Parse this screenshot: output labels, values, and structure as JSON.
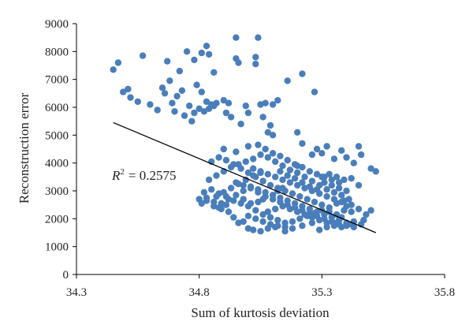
{
  "chart_data": {
    "type": "scatter",
    "title": "",
    "xlabel": "Sum of kurtosis deviation",
    "ylabel": "Reconstruction error",
    "xlim": [
      34.3,
      35.8
    ],
    "ylim": [
      0,
      9000
    ],
    "x_ticks": [
      "34.3",
      "34.8",
      "35.3",
      "35.8"
    ],
    "y_ticks": [
      "0",
      "1000",
      "2000",
      "3000",
      "4000",
      "5000",
      "6000",
      "7000",
      "8000",
      "9000"
    ],
    "grid": false,
    "legend": "none",
    "point_color": "#4a7ebb",
    "trendline": {
      "color": "#000000",
      "x": [
        34.45,
        35.52
      ],
      "y": [
        5450,
        1500
      ],
      "annotation": {
        "prefix": "R",
        "superscript": "2",
        "equals": "= 0.2575"
      }
    },
    "points": [
      [
        34.45,
        7350
      ],
      [
        34.47,
        7600
      ],
      [
        34.49,
        6550
      ],
      [
        34.51,
        6650
      ],
      [
        34.52,
        6350
      ],
      [
        34.55,
        6200
      ],
      [
        34.57,
        7850
      ],
      [
        34.6,
        6100
      ],
      [
        34.63,
        5900
      ],
      [
        34.65,
        6700
      ],
      [
        34.66,
        6500
      ],
      [
        34.67,
        7650
      ],
      [
        34.68,
        6950
      ],
      [
        34.69,
        6150
      ],
      [
        34.7,
        5850
      ],
      [
        34.71,
        6400
      ],
      [
        34.72,
        7300
      ],
      [
        34.73,
        6600
      ],
      [
        34.74,
        5700
      ],
      [
        34.75,
        8000
      ],
      [
        34.76,
        6050
      ],
      [
        34.77,
        5500
      ],
      [
        34.78,
        7700
      ],
      [
        34.78,
        5800
      ],
      [
        34.79,
        6800
      ],
      [
        34.8,
        5950
      ],
      [
        34.81,
        6550
      ],
      [
        34.81,
        7950
      ],
      [
        34.82,
        5850
      ],
      [
        34.83,
        6200
      ],
      [
        34.83,
        8200
      ],
      [
        34.84,
        5950
      ],
      [
        34.84,
        7900
      ],
      [
        34.85,
        6100
      ],
      [
        34.86,
        7250
      ],
      [
        34.86,
        6050
      ],
      [
        34.87,
        6150
      ],
      [
        34.9,
        6250
      ],
      [
        34.91,
        5800
      ],
      [
        34.92,
        6150
      ],
      [
        34.93,
        5650
      ],
      [
        34.95,
        8500
      ],
      [
        34.95,
        7750
      ],
      [
        34.96,
        7600
      ],
      [
        34.97,
        5400
      ],
      [
        34.99,
        6050
      ],
      [
        35.0,
        5800
      ],
      [
        35.03,
        7800
      ],
      [
        35.03,
        7550
      ],
      [
        35.04,
        8500
      ],
      [
        35.05,
        6100
      ],
      [
        35.06,
        5650
      ],
      [
        35.07,
        6150
      ],
      [
        35.08,
        5100
      ],
      [
        35.09,
        5350
      ],
      [
        35.1,
        6100
      ],
      [
        35.12,
        6250
      ],
      [
        35.16,
        6950
      ],
      [
        35.22,
        7200
      ],
      [
        35.27,
        6550
      ],
      [
        35.1,
        5000
      ],
      [
        35.2,
        5100
      ],
      [
        35.22,
        4700
      ],
      [
        35.26,
        4300
      ],
      [
        35.28,
        4500
      ],
      [
        35.3,
        4350
      ],
      [
        35.32,
        4600
      ],
      [
        35.35,
        4150
      ],
      [
        35.38,
        4450
      ],
      [
        35.4,
        4200
      ],
      [
        35.43,
        4000
      ],
      [
        35.45,
        4600
      ],
      [
        35.46,
        4300
      ],
      [
        35.5,
        3800
      ],
      [
        35.52,
        3700
      ],
      [
        35.42,
        3450
      ],
      [
        35.45,
        3200
      ],
      [
        35.4,
        2450
      ],
      [
        35.45,
        2350
      ],
      [
        35.48,
        2150
      ],
      [
        35.5,
        2300
      ],
      [
        35.47,
        1950
      ],
      [
        35.38,
        2050
      ],
      [
        35.35,
        1850
      ],
      [
        35.42,
        1800
      ],
      [
        35.32,
        1700
      ],
      [
        35.29,
        1600
      ],
      [
        35.26,
        1850
      ],
      [
        35.22,
        1750
      ],
      [
        35.18,
        1650
      ],
      [
        35.15,
        1550
      ],
      [
        35.11,
        1700
      ],
      [
        35.08,
        1650
      ],
      [
        35.05,
        1550
      ],
      [
        35.02,
        1600
      ],
      [
        35.0,
        1650
      ],
      [
        34.98,
        1900
      ],
      [
        34.96,
        1850
      ],
      [
        34.94,
        2050
      ],
      [
        34.92,
        2250
      ],
      [
        34.89,
        2350
      ],
      [
        34.86,
        2600
      ],
      [
        34.83,
        2750
      ],
      [
        34.8,
        2700
      ],
      [
        34.82,
        2950
      ],
      [
        34.85,
        3050
      ],
      [
        34.88,
        2900
      ],
      [
        34.91,
        2800
      ],
      [
        34.94,
        2650
      ],
      [
        34.97,
        2550
      ],
      [
        35.0,
        2450
      ],
      [
        35.03,
        2300
      ],
      [
        35.06,
        2150
      ],
      [
        35.09,
        2050
      ],
      [
        35.12,
        1950
      ],
      [
        35.15,
        1850
      ],
      [
        35.18,
        1900
      ],
      [
        35.21,
        2000
      ],
      [
        35.24,
        2100
      ],
      [
        35.27,
        2200
      ],
      [
        35.3,
        2300
      ],
      [
        35.33,
        2250
      ],
      [
        35.36,
        2150
      ],
      [
        35.39,
        2300
      ],
      [
        35.42,
        2250
      ],
      [
        34.84,
        3400
      ],
      [
        34.87,
        3550
      ],
      [
        34.9,
        3700
      ],
      [
        34.93,
        3850
      ],
      [
        34.96,
        3950
      ],
      [
        34.99,
        4050
      ],
      [
        35.02,
        4150
      ],
      [
        35.05,
        4300
      ],
      [
        35.08,
        4200
      ],
      [
        35.11,
        4050
      ],
      [
        35.14,
        3900
      ],
      [
        35.17,
        3750
      ],
      [
        35.2,
        3650
      ],
      [
        35.23,
        3500
      ],
      [
        35.26,
        3350
      ],
      [
        35.29,
        3200
      ],
      [
        35.32,
        3050
      ],
      [
        35.35,
        2950
      ],
      [
        35.38,
        2850
      ],
      [
        35.41,
        2700
      ],
      [
        34.85,
        4050
      ],
      [
        34.88,
        4200
      ],
      [
        34.91,
        4100
      ],
      [
        34.94,
        3950
      ],
      [
        34.97,
        3800
      ],
      [
        35.0,
        3650
      ],
      [
        35.03,
        3500
      ],
      [
        35.06,
        3350
      ],
      [
        35.09,
        3200
      ],
      [
        35.12,
        3100
      ],
      [
        35.15,
        3000
      ],
      [
        35.18,
        2900
      ],
      [
        35.21,
        2800
      ],
      [
        35.24,
        2700
      ],
      [
        35.27,
        2600
      ],
      [
        35.3,
        2500
      ],
      [
        35.33,
        2400
      ],
      [
        35.36,
        2550
      ],
      [
        35.39,
        2650
      ],
      [
        35.42,
        2500
      ],
      [
        34.86,
        2450
      ],
      [
        34.89,
        2550
      ],
      [
        34.92,
        2700
      ],
      [
        34.95,
        2850
      ],
      [
        34.98,
        3000
      ],
      [
        35.01,
        3150
      ],
      [
        35.04,
        3050
      ],
      [
        35.07,
        2950
      ],
      [
        35.1,
        2850
      ],
      [
        35.13,
        2750
      ],
      [
        35.16,
        2650
      ],
      [
        35.19,
        2550
      ],
      [
        35.22,
        2450
      ],
      [
        35.25,
        2350
      ],
      [
        35.28,
        2250
      ],
      [
        35.31,
        2150
      ],
      [
        35.34,
        2050
      ],
      [
        35.37,
        1950
      ],
      [
        35.4,
        1850
      ],
      [
        35.43,
        1900
      ],
      [
        34.9,
        4500
      ],
      [
        34.95,
        4400
      ],
      [
        35.0,
        4600
      ],
      [
        35.04,
        4650
      ],
      [
        35.07,
        4500
      ],
      [
        35.1,
        4350
      ],
      [
        35.13,
        4250
      ],
      [
        35.16,
        4100
      ],
      [
        35.19,
        3950
      ],
      [
        35.22,
        3850
      ],
      [
        35.25,
        3700
      ],
      [
        35.28,
        3600
      ],
      [
        35.31,
        3500
      ],
      [
        35.34,
        3400
      ],
      [
        35.37,
        3300
      ],
      [
        34.95,
        3300
      ],
      [
        34.98,
        3200
      ],
      [
        35.01,
        3100
      ],
      [
        35.04,
        2950
      ],
      [
        35.07,
        2800
      ],
      [
        35.1,
        2700
      ],
      [
        35.13,
        2600
      ],
      [
        35.16,
        2500
      ],
      [
        35.19,
        2400
      ],
      [
        35.22,
        2300
      ],
      [
        35.25,
        2200
      ],
      [
        35.28,
        2100
      ],
      [
        35.31,
        2000
      ],
      [
        35.34,
        1900
      ],
      [
        35.37,
        1800
      ],
      [
        35.4,
        1750
      ],
      [
        35.43,
        1700
      ],
      [
        35.46,
        1800
      ],
      [
        35.0,
        2100
      ],
      [
        35.03,
        2000
      ],
      [
        35.06,
        1900
      ],
      [
        35.09,
        1800
      ],
      [
        35.12,
        1750
      ],
      [
        35.15,
        1700
      ],
      [
        35.08,
        2250
      ],
      [
        35.11,
        2350
      ],
      [
        35.14,
        2450
      ],
      [
        35.17,
        2350
      ],
      [
        35.2,
        2250
      ],
      [
        35.23,
        2150
      ],
      [
        35.26,
        2050
      ],
      [
        35.29,
        1950
      ],
      [
        35.32,
        1850
      ],
      [
        35.35,
        1750
      ],
      [
        35.38,
        1700
      ],
      [
        35.02,
        3800
      ],
      [
        35.05,
        3700
      ],
      [
        35.08,
        3600
      ],
      [
        35.11,
        3500
      ],
      [
        35.14,
        3400
      ],
      [
        35.17,
        3300
      ],
      [
        35.2,
        3200
      ],
      [
        35.23,
        3100
      ],
      [
        35.26,
        3000
      ],
      [
        35.29,
        2900
      ],
      [
        35.32,
        2800
      ],
      [
        35.35,
        2700
      ],
      [
        35.38,
        2600
      ],
      [
        34.81,
        2550
      ],
      [
        34.83,
        2650
      ],
      [
        34.87,
        2800
      ],
      [
        34.9,
        2950
      ],
      [
        34.93,
        3100
      ],
      [
        34.96,
        3250
      ],
      [
        34.99,
        3400
      ],
      [
        35.02,
        3550
      ],
      [
        35.05,
        3650
      ],
      [
        35.13,
        3700
      ],
      [
        35.16,
        3550
      ],
      [
        35.19,
        3450
      ],
      [
        35.22,
        3300
      ],
      [
        35.25,
        3150
      ],
      [
        35.28,
        3050
      ],
      [
        35.31,
        3300
      ],
      [
        35.34,
        3200
      ],
      [
        35.37,
        3100
      ],
      [
        35.4,
        3000
      ],
      [
        35.3,
        3500
      ],
      [
        35.33,
        3600
      ],
      [
        35.36,
        3500
      ],
      [
        35.39,
        3400
      ],
      [
        35.2,
        3900
      ],
      [
        35.12,
        3000
      ],
      [
        35.14,
        3100
      ],
      [
        35.06,
        2700
      ],
      [
        35.04,
        2600
      ],
      [
        35.01,
        2550
      ],
      [
        34.98,
        2700
      ],
      [
        34.91,
        2500
      ],
      [
        34.88,
        2400
      ]
    ]
  }
}
